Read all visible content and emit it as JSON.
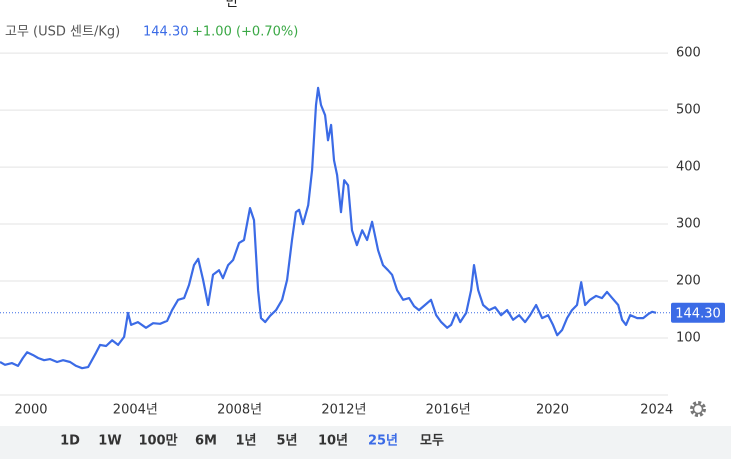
{
  "chart_data": {
    "type": "line",
    "title": "만",
    "series_label": "고무 (USD 센트/Kg)",
    "last": {
      "value": 144.3,
      "label": "144.30"
    },
    "change": "+1.00 (+0.70%)",
    "color": "#3b6be6",
    "x": [
      1998.81,
      1999.0,
      1999.27,
      1999.5,
      1999.69,
      1999.85,
      2000.08,
      2000.27,
      2000.5,
      2000.73,
      2001.0,
      2001.23,
      2001.5,
      2001.73,
      2001.96,
      2002.19,
      2002.49,
      2002.65,
      2002.88,
      2003.11,
      2003.34,
      2003.57,
      2003.72,
      2003.84,
      2004.1,
      2004.41,
      2004.68,
      2004.95,
      2005.22,
      2005.41,
      2005.64,
      2005.87,
      2006.06,
      2006.25,
      2006.41,
      2006.6,
      2006.79,
      2006.98,
      2007.21,
      2007.36,
      2007.56,
      2007.75,
      2007.98,
      2008.17,
      2008.4,
      2008.55,
      2008.71,
      2008.82,
      2008.98,
      2009.17,
      2009.4,
      2009.63,
      2009.82,
      2010.01,
      2010.16,
      2010.28,
      2010.43,
      2010.63,
      2010.78,
      2010.93,
      2011.01,
      2011.12,
      2011.28,
      2011.39,
      2011.51,
      2011.62,
      2011.74,
      2011.89,
      2012.01,
      2012.16,
      2012.31,
      2012.5,
      2012.7,
      2012.89,
      2013.08,
      2013.31,
      2013.5,
      2013.69,
      2013.85,
      2014.04,
      2014.27,
      2014.5,
      2014.69,
      2014.88,
      2015.11,
      2015.34,
      2015.54,
      2015.73,
      2015.96,
      2016.11,
      2016.3,
      2016.46,
      2016.69,
      2016.88,
      2016.99,
      2017.15,
      2017.34,
      2017.57,
      2017.8,
      2018.03,
      2018.26,
      2018.49,
      2018.72,
      2018.95,
      2019.14,
      2019.37,
      2019.6,
      2019.83,
      2020.02,
      2020.18,
      2020.37,
      2020.56,
      2020.75,
      2020.94,
      2021.1,
      2021.25,
      2021.44,
      2021.67,
      2021.9,
      2022.09,
      2022.29,
      2022.52,
      2022.67,
      2022.82,
      2022.98,
      2023.25,
      2023.48,
      2023.67,
      2023.82,
      2023.97
    ],
    "values": [
      58,
      53,
      56,
      51,
      65,
      75,
      70,
      65,
      61,
      63,
      58,
      61,
      58,
      51,
      47,
      49,
      74,
      88,
      86,
      96,
      88,
      102,
      144,
      123,
      128,
      118,
      126,
      125,
      130,
      149,
      167,
      170,
      193,
      228,
      239,
      202,
      158,
      211,
      219,
      205,
      228,
      237,
      267,
      272,
      328,
      307,
      184,
      135,
      128,
      139,
      149,
      167,
      202,
      272,
      321,
      325,
      300,
      333,
      395,
      509,
      539,
      509,
      491,
      447,
      474,
      412,
      386,
      321,
      377,
      368,
      289,
      263,
      289,
      272,
      304,
      254,
      228,
      219,
      211,
      184,
      167,
      170,
      156,
      149,
      158,
      167,
      140,
      128,
      118,
      123,
      144,
      128,
      144,
      184,
      228,
      184,
      158,
      149,
      154,
      140,
      149,
      132,
      140,
      128,
      140,
      158,
      135,
      140,
      123,
      105,
      114,
      135,
      149,
      158,
      198,
      158,
      167,
      174,
      170,
      181,
      170,
      158,
      132,
      123,
      140,
      135,
      135,
      142,
      146,
      144.3
    ],
    "xlim": [
      1998.81,
      2024.43
    ],
    "xticks": [
      2000,
      {
        "value": 2004,
        "label": "2004년"
      },
      {
        "value": 2008,
        "label": "2008년"
      },
      {
        "value": 2012,
        "label": "2012년"
      },
      {
        "value": 2016,
        "label": "2016년"
      },
      2020,
      2024
    ],
    "ylim": [
      0,
      623
    ],
    "yticks": [
      100,
      200,
      300,
      400,
      500,
      600
    ],
    "grid": true,
    "range_buttons": [
      "1D",
      "1W",
      "100만",
      "6M",
      "1년",
      "5년",
      "10년",
      "25년",
      "모두"
    ],
    "selected_range": 7
  }
}
